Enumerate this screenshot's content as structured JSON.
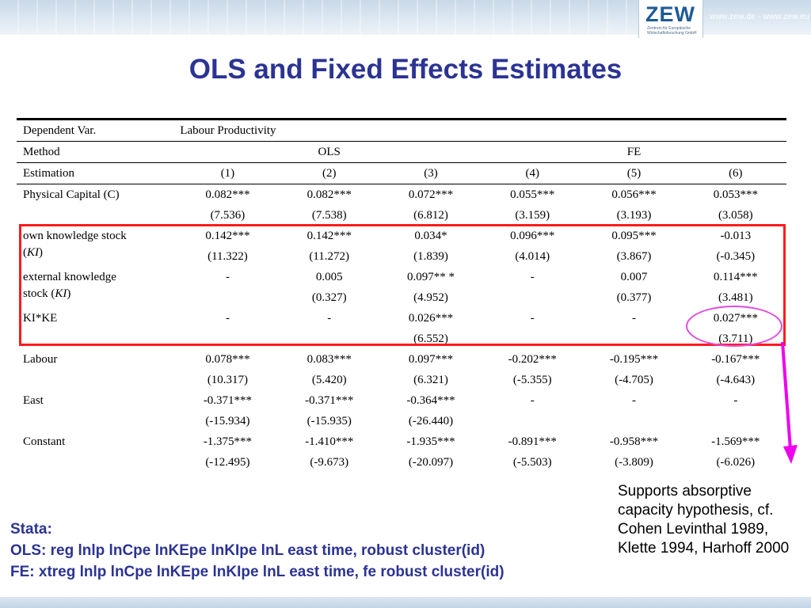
{
  "header": {
    "logo_text": "ZEW",
    "logo_subtitle": "Zentrum für Europäische Wirtschaftsforschung GmbH",
    "url": "www.zew.de · www.zew.eu"
  },
  "title": "OLS and Fixed Effects Estimates",
  "table": {
    "dependent_label": "Dependent Var.",
    "dependent_value": "Labour Productivity",
    "method_label": "Method",
    "method_ols": "OLS",
    "method_fe": "FE",
    "estimation_label": "Estimation",
    "columns": [
      "(1)",
      "(2)",
      "(3)",
      "(4)",
      "(5)",
      "(6)"
    ],
    "rows": [
      {
        "label": "Physical Capital (C)",
        "coef": [
          "0.082***",
          "0.082***",
          "0.072***",
          "0.055***",
          "0.056***",
          "0.053***"
        ],
        "se": [
          "(7.536)",
          "(7.538)",
          "(6.812)",
          "(3.159)",
          "(3.193)",
          "(3.058)"
        ]
      },
      {
        "label": "own knowledge stock",
        "label_suffix_open": "(",
        "label_italic": "KI",
        "label_suffix_close": ")",
        "coef": [
          "0.142***",
          "0.142***",
          "0.034*",
          "0.096***",
          "0.095***",
          "-0.013"
        ],
        "se": [
          "(11.322)",
          "(11.272)",
          "(1.839)",
          "(4.014)",
          "(3.867)",
          "(-0.345)"
        ]
      },
      {
        "label": "external knowledge",
        "label_line2": "stock (",
        "label_italic": "KI",
        "label_suffix_close": ")",
        "coef": [
          "-",
          "0.005",
          "0.097** *",
          "-",
          "0.007",
          "0.114***"
        ],
        "se": [
          "",
          "(0.327)",
          "(4.952)",
          "",
          "(0.377)",
          "(3.481)"
        ]
      },
      {
        "label": "KI*KE",
        "coef": [
          "-",
          "-",
          "0.026***",
          "-",
          "-",
          "0.027***"
        ],
        "se": [
          "",
          "",
          "(6.552)",
          "",
          "",
          "(3.711)"
        ]
      },
      {
        "label": "Labour",
        "coef": [
          "0.078***",
          "0.083***",
          "0.097***",
          "-0.202***",
          "-0.195***",
          "-0.167***"
        ],
        "se": [
          "(10.317)",
          "(5.420)",
          "(6.321)",
          "(-5.355)",
          "(-4.705)",
          "(-4.643)"
        ]
      },
      {
        "label": "East",
        "coef": [
          "-0.371***",
          "-0.371***",
          "-0.364***",
          "-",
          "-",
          "-"
        ],
        "se": [
          "(-15.934)",
          "(-15.935)",
          "(-26.440)",
          "",
          "",
          ""
        ]
      },
      {
        "label": "Constant",
        "coef": [
          "-1.375***",
          "-1.410***",
          "-1.935***",
          "-0.891***",
          "-0.958***",
          "-1.569***"
        ],
        "se": [
          "(-12.495)",
          "(-9.673)",
          "(-20.097)",
          "(-5.503)",
          "(-3.809)",
          "(-6.026)"
        ]
      }
    ]
  },
  "note": "Supports absorptive capacity hypothesis, cf. Cohen Levinthal 1989, Klette 1994, Harhoff 2000",
  "stata": {
    "heading": "Stata:",
    "ols_line": "OLS: reg lnlp lnCpe lnKEpe lnKIpe lnL east time, robust cluster(id)",
    "fe_line": "FE: xtreg lnlp lnCpe lnKEpe lnKIpe lnL east time, fe robust cluster(id)"
  },
  "colors": {
    "title": "#2b3393",
    "highlight_box": "#ff1a1a",
    "ellipse": "#e24be2",
    "arrow": "#ee00ee",
    "logo": "#1e5a96"
  }
}
